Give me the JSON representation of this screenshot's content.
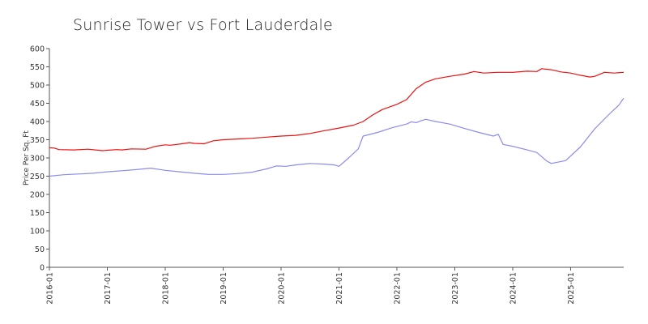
{
  "chart_data": {
    "type": "line",
    "title": "Sunrise Tower vs Fort Lauderdale",
    "ylabel": "Price Per Sq. Ft",
    "xlabel": "",
    "ylim": [
      0,
      600
    ],
    "xlim": [
      "2016-01",
      "2025-12"
    ],
    "yticks": [
      "0",
      "50",
      "100",
      "150",
      "200",
      "250",
      "300",
      "350",
      "400",
      "450",
      "500",
      "550",
      "600"
    ],
    "xticks": [
      "2016-01",
      "2017-01",
      "2018-01",
      "2019-01",
      "2020-01",
      "2021-01",
      "2022-01",
      "2023-01",
      "2024-01",
      "2025-01"
    ],
    "grid": false,
    "series": [
      {
        "color": "#ee1111",
        "points": [
          [
            "2016-01",
            328
          ],
          [
            "2016-02",
            327
          ],
          [
            "2016-03",
            323
          ],
          [
            "2016-06",
            322
          ],
          [
            "2016-09",
            324
          ],
          [
            "2016-12",
            320
          ],
          [
            "2017-01",
            321
          ],
          [
            "2017-03",
            323
          ],
          [
            "2017-04",
            322
          ],
          [
            "2017-06",
            325
          ],
          [
            "2017-09",
            324
          ],
          [
            "2017-11",
            332
          ],
          [
            "2018-01",
            336
          ],
          [
            "2018-02",
            335
          ],
          [
            "2018-04",
            338
          ],
          [
            "2018-06",
            342
          ],
          [
            "2018-07",
            340
          ],
          [
            "2018-09",
            339
          ],
          [
            "2018-11",
            347
          ],
          [
            "2019-01",
            350
          ],
          [
            "2019-04",
            352
          ],
          [
            "2019-07",
            354
          ],
          [
            "2019-10",
            357
          ],
          [
            "2020-01",
            360
          ],
          [
            "2020-04",
            362
          ],
          [
            "2020-07",
            367
          ],
          [
            "2020-10",
            375
          ],
          [
            "2021-01",
            382
          ],
          [
            "2021-04",
            390
          ],
          [
            "2021-06",
            400
          ],
          [
            "2021-08",
            418
          ],
          [
            "2021-10",
            433
          ],
          [
            "2022-01",
            447
          ],
          [
            "2022-03",
            460
          ],
          [
            "2022-05",
            490
          ],
          [
            "2022-07",
            508
          ],
          [
            "2022-09",
            517
          ],
          [
            "2022-12",
            524
          ],
          [
            "2023-03",
            530
          ],
          [
            "2023-05",
            537
          ],
          [
            "2023-07",
            533
          ],
          [
            "2023-10",
            535
          ],
          [
            "2024-01",
            535
          ],
          [
            "2024-04",
            538
          ],
          [
            "2024-06",
            537
          ],
          [
            "2024-07",
            545
          ],
          [
            "2024-09",
            542
          ],
          [
            "2024-11",
            536
          ],
          [
            "2025-01",
            533
          ],
          [
            "2025-03",
            527
          ],
          [
            "2025-05",
            522
          ],
          [
            "2025-06",
            524
          ],
          [
            "2025-08",
            535
          ],
          [
            "2025-10",
            533
          ],
          [
            "2025-12",
            535
          ]
        ]
      },
      {
        "color": "#8b8bee",
        "points": [
          [
            "2016-01",
            250
          ],
          [
            "2016-04",
            254
          ],
          [
            "2016-07",
            256
          ],
          [
            "2016-10",
            258
          ],
          [
            "2017-01",
            262
          ],
          [
            "2017-04",
            265
          ],
          [
            "2017-07",
            268
          ],
          [
            "2017-10",
            272
          ],
          [
            "2018-01",
            266
          ],
          [
            "2018-04",
            262
          ],
          [
            "2018-07",
            258
          ],
          [
            "2018-10",
            255
          ],
          [
            "2019-01",
            255
          ],
          [
            "2019-04",
            257
          ],
          [
            "2019-07",
            261
          ],
          [
            "2019-10",
            270
          ],
          [
            "2019-12",
            278
          ],
          [
            "2020-02",
            277
          ],
          [
            "2020-04",
            281
          ],
          [
            "2020-07",
            285
          ],
          [
            "2020-10",
            283
          ],
          [
            "2020-12",
            281
          ],
          [
            "2021-01",
            277
          ],
          [
            "2021-03",
            300
          ],
          [
            "2021-05",
            325
          ],
          [
            "2021-06",
            360
          ],
          [
            "2021-09",
            370
          ],
          [
            "2021-12",
            383
          ],
          [
            "2022-03",
            393
          ],
          [
            "2022-04",
            399
          ],
          [
            "2022-05",
            397
          ],
          [
            "2022-06",
            402
          ],
          [
            "2022-07",
            406
          ],
          [
            "2022-09",
            400
          ],
          [
            "2022-12",
            393
          ],
          [
            "2023-03",
            381
          ],
          [
            "2023-06",
            370
          ],
          [
            "2023-09",
            360
          ],
          [
            "2023-10",
            365
          ],
          [
            "2023-11",
            337
          ],
          [
            "2024-01",
            332
          ],
          [
            "2024-04",
            322
          ],
          [
            "2024-06",
            315
          ],
          [
            "2024-08",
            292
          ],
          [
            "2024-09",
            285
          ],
          [
            "2024-12",
            293
          ],
          [
            "2025-03",
            330
          ],
          [
            "2025-06",
            380
          ],
          [
            "2025-09",
            420
          ],
          [
            "2025-11",
            445
          ],
          [
            "2025-12",
            464
          ]
        ]
      }
    ]
  }
}
